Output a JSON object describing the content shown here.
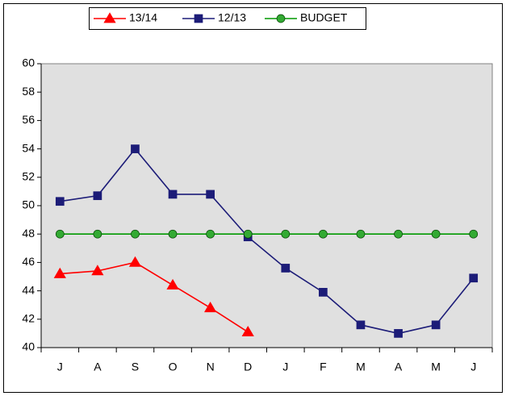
{
  "chart_data": {
    "type": "line",
    "categories": [
      "J",
      "A",
      "S",
      "O",
      "N",
      "D",
      "J",
      "F",
      "M",
      "A",
      "M",
      "J"
    ],
    "series": [
      {
        "name": "13/14",
        "color": "#ff0000",
        "marker": "triangle",
        "values": [
          45.2,
          45.4,
          46.0,
          44.4,
          42.8,
          41.1,
          null,
          null,
          null,
          null,
          null,
          null
        ]
      },
      {
        "name": "12/13",
        "color": "#1c1c78",
        "marker": "square",
        "values": [
          50.3,
          50.7,
          54.0,
          50.8,
          50.8,
          47.8,
          45.6,
          43.9,
          41.6,
          41.0,
          41.6,
          44.9
        ]
      },
      {
        "name": "BUDGET",
        "color": "#009900",
        "marker": "circle",
        "values": [
          48,
          48,
          48,
          48,
          48,
          48,
          48,
          48,
          48,
          48,
          48,
          48
        ]
      }
    ],
    "ylim": [
      40,
      60
    ],
    "yticks": [
      40,
      42,
      44,
      46,
      48,
      50,
      52,
      54,
      56,
      58,
      60
    ],
    "grid": false,
    "legend": "top"
  }
}
